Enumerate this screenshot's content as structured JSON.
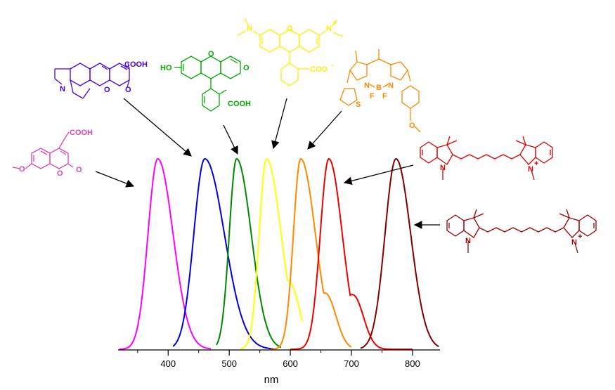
{
  "chart_data": {
    "type": "line",
    "xlabel": "nm",
    "ylabel": "",
    "xlim": [
      318,
      845
    ],
    "ylim": [
      0,
      1
    ],
    "x_ticks": [
      400,
      500,
      600,
      700,
      800
    ],
    "grid": false,
    "series": [
      {
        "color": "#ff00ff",
        "range": [
          320,
          470
        ],
        "peak": 383,
        "width_left": 16,
        "width_right": 25,
        "shoulder": null
      },
      {
        "color": "#0000dd",
        "range": [
          408,
          575
        ],
        "peak": 460,
        "width_left": 18,
        "width_right": 32,
        "shoulder": null
      },
      {
        "color": "#008800",
        "range": [
          479,
          585
        ],
        "peak": 512,
        "width_left": 12,
        "width_right": 24,
        "shoulder": null
      },
      {
        "color": "#ffff00",
        "range": [
          518,
          620
        ],
        "peak": 561,
        "width_left": 12,
        "width_right": 24,
        "shoulder": [
          600,
          0.3,
          16
        ]
      },
      {
        "color": "#ff8800",
        "range": [
          568,
          700
        ],
        "peak": 617,
        "width_left": 12,
        "width_right": 24,
        "shoulder": [
          660,
          0.25,
          16
        ]
      },
      {
        "color": "#ee0000",
        "range": [
          600,
          800
        ],
        "peak": 663,
        "width_left": 14,
        "width_right": 22,
        "shoulder": [
          705,
          0.25,
          16
        ]
      },
      {
        "color": "#800000",
        "range": [
          715,
          843
        ],
        "peak": 773,
        "width_left": 18,
        "width_right": 24,
        "shoulder": null
      }
    ]
  },
  "molecules": {
    "coumarin_7_methoxy": {
      "color": "#dd44aa",
      "labels": [
        "COOH",
        "O",
        "O",
        "O"
      ]
    },
    "coumarin_343": {
      "color": "#4400ee",
      "labels": [
        "COOH",
        "N",
        "O",
        "O"
      ]
    },
    "fluorescein": {
      "color": "#00aa00",
      "labels": [
        "HO",
        "O",
        "O",
        "COOH"
      ]
    },
    "rhodamine": {
      "color": "#ffee00",
      "labels": [
        "N",
        "O",
        "N",
        "+",
        "COO",
        "-"
      ]
    },
    "bodipy": {
      "color": "#ff8800",
      "labels": [
        "N",
        "N",
        "B",
        "F",
        "F",
        "S",
        "O"
      ]
    },
    "cy5": {
      "color": "#dd0000",
      "labels": [
        "N",
        "N",
        "+"
      ]
    },
    "cy7": {
      "color": "#990000",
      "labels": [
        "N",
        "N",
        "+"
      ]
    }
  }
}
